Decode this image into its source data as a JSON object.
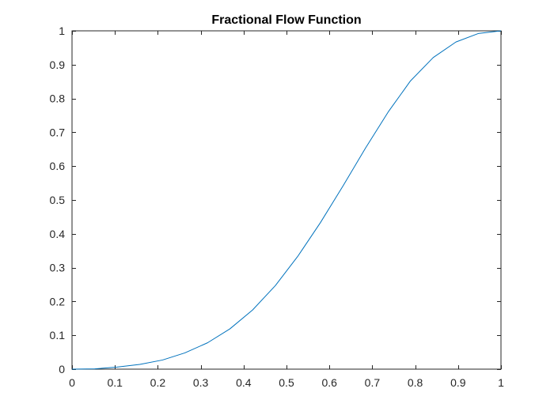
{
  "chart_data": {
    "type": "line",
    "title": "Fractional Flow Function",
    "xlabel": "",
    "ylabel": "",
    "xlim": [
      0,
      1
    ],
    "ylim": [
      0,
      1
    ],
    "x_ticks": [
      0,
      0.1,
      0.2,
      0.3,
      0.4,
      0.5,
      0.6,
      0.7,
      0.8,
      0.9,
      1
    ],
    "x_tick_labels": [
      "0",
      "0.1",
      "0.2",
      "0.3",
      "0.4",
      "0.5",
      "0.6",
      "0.7",
      "0.8",
      "0.9",
      "1"
    ],
    "y_ticks": [
      0,
      0.1,
      0.2,
      0.3,
      0.4,
      0.5,
      0.6,
      0.7,
      0.8,
      0.9,
      1
    ],
    "y_tick_labels": [
      "0",
      "0.1",
      "0.2",
      "0.3",
      "0.4",
      "0.5",
      "0.6",
      "0.7",
      "0.8",
      "0.9",
      "1"
    ],
    "grid": false,
    "line_color": "#0072BD",
    "axis_color": "#262626",
    "series": [
      {
        "x": [
          0,
          0.053,
          0.105,
          0.158,
          0.211,
          0.263,
          0.316,
          0.368,
          0.421,
          0.474,
          0.526,
          0.579,
          0.632,
          0.684,
          0.737,
          0.789,
          0.842,
          0.895,
          0.947,
          1
        ],
        "y": [
          0,
          0.001,
          0.006,
          0.014,
          0.027,
          0.048,
          0.078,
          0.119,
          0.175,
          0.247,
          0.333,
          0.433,
          0.542,
          0.653,
          0.76,
          0.852,
          0.921,
          0.967,
          0.992,
          1
        ]
      }
    ]
  }
}
